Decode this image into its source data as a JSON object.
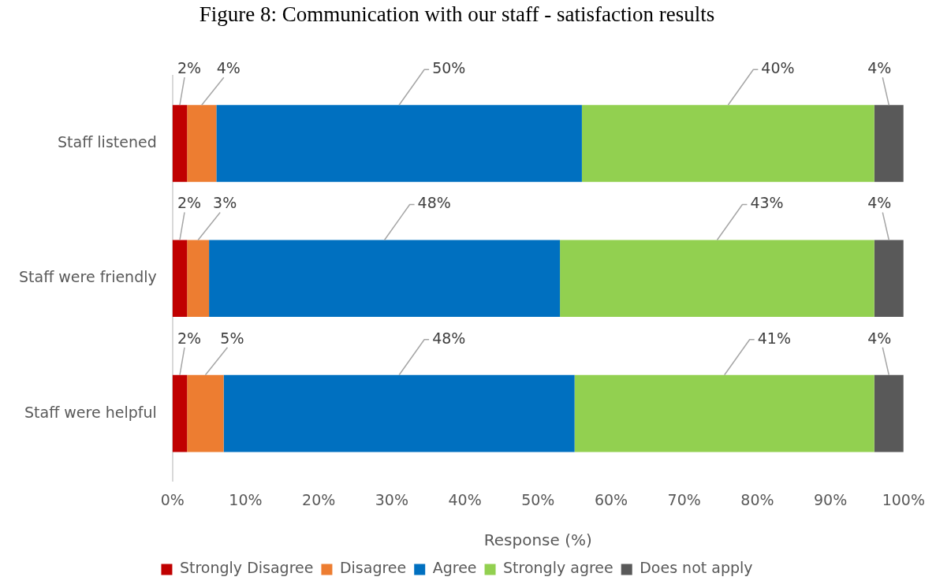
{
  "chart_data": {
    "type": "bar",
    "orientation": "horizontal",
    "stacked": true,
    "title": "Figure 8: Communication with our staff - satisfaction results",
    "xlabel": "Response (%)",
    "categories": [
      "Staff listened",
      "Staff were friendly",
      "Staff were helpful"
    ],
    "series": [
      {
        "name": "Strongly Disagree",
        "color": "#c00000",
        "values": [
          2,
          2,
          2
        ],
        "value_labels": [
          "2%",
          "2%",
          "2%"
        ]
      },
      {
        "name": "Disagree",
        "color": "#ed7d31",
        "values": [
          4,
          3,
          5
        ],
        "value_labels": [
          "4%",
          "3%",
          "5%"
        ]
      },
      {
        "name": "Agree",
        "color": "#0070c0",
        "values": [
          50,
          48,
          48
        ],
        "value_labels": [
          "50%",
          "48%",
          "48%"
        ]
      },
      {
        "name": "Strongly agree",
        "color": "#92d050",
        "values": [
          40,
          43,
          41
        ],
        "value_labels": [
          "40%",
          "43%",
          "41%"
        ]
      },
      {
        "name": "Does not apply",
        "color": "#595959",
        "values": [
          4,
          4,
          4
        ],
        "value_labels": [
          "4%",
          "4%",
          "4%"
        ]
      }
    ],
    "xlim": [
      0,
      100
    ],
    "xticks": [
      {
        "value": 0,
        "label": "0%"
      },
      {
        "value": 10,
        "label": "10%"
      },
      {
        "value": 20,
        "label": "20%"
      },
      {
        "value": 30,
        "label": "30%"
      },
      {
        "value": 40,
        "label": "40%"
      },
      {
        "value": 50,
        "label": "50%"
      },
      {
        "value": 60,
        "label": "60%"
      },
      {
        "value": 70,
        "label": "70%"
      },
      {
        "value": 80,
        "label": "80%"
      },
      {
        "value": 90,
        "label": "90%"
      },
      {
        "value": 100,
        "label": "100%"
      }
    ],
    "grid": false,
    "legend": "bottom"
  }
}
